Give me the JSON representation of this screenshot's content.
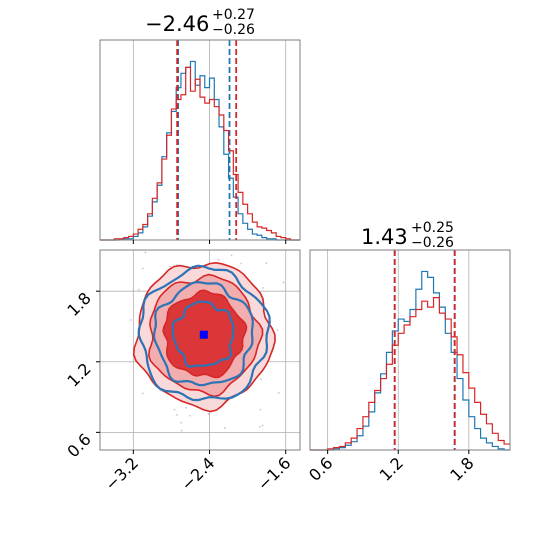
{
  "chart_data": [
    {
      "type": "histogram",
      "panel": "marginal-x",
      "title": {
        "value": "−2.46",
        "upper": "+0.27",
        "lower": "−0.26"
      },
      "xlim": [
        -3.55,
        -1.45
      ],
      "bins_x": [
        -3.55,
        -3.5,
        -3.45,
        -3.4,
        -3.35,
        -3.3,
        -3.25,
        -3.2,
        -3.15,
        -3.1,
        -3.05,
        -3.0,
        -2.95,
        -2.9,
        -2.85,
        -2.8,
        -2.75,
        -2.7,
        -2.65,
        -2.6,
        -2.55,
        -2.5,
        -2.45,
        -2.4,
        -2.35,
        -2.3,
        -2.25,
        -2.2,
        -2.15,
        -2.1,
        -2.05,
        -2.0,
        -1.95,
        -1.9,
        -1.85,
        -1.8,
        -1.75,
        -1.7,
        -1.65,
        -1.6,
        -1.55,
        -1.5,
        -1.45
      ],
      "series": [
        {
          "name": "",
          "color": "#1f77b4",
          "values": [
            0,
            0,
            0,
            0,
            1,
            1,
            1,
            3,
            6,
            11,
            20,
            32,
            46,
            70,
            90,
            108,
            128,
            140,
            145,
            150,
            130,
            138,
            128,
            136,
            118,
            95,
            72,
            52,
            36,
            22,
            14,
            9,
            5,
            4,
            2,
            1,
            1,
            0,
            0,
            0,
            0,
            0
          ],
          "quantiles": [
            -2.73,
            -2.46,
            -2.19
          ]
        },
        {
          "name": "",
          "color": "#d62728",
          "values": [
            0,
            0,
            0,
            1,
            1,
            2,
            3,
            5,
            9,
            13,
            22,
            35,
            48,
            68,
            88,
            110,
            118,
            122,
            145,
            125,
            135,
            120,
            115,
            118,
            112,
            105,
            92,
            75,
            55,
            40,
            30,
            22,
            15,
            11,
            10,
            8,
            6,
            3,
            2,
            1,
            0,
            0
          ],
          "quantiles": [
            -2.74,
            -2.46,
            -2.12
          ]
        }
      ]
    },
    {
      "type": "histogram",
      "panel": "marginal-y",
      "title": {
        "value": "1.43",
        "upper": "+0.25",
        "lower": "−0.26"
      },
      "xlim": [
        0.45,
        2.15
      ],
      "xticks": [
        "0.6",
        "1.2",
        "1.8"
      ],
      "bins_x": [
        0.45,
        0.5,
        0.55,
        0.6,
        0.65,
        0.7,
        0.75,
        0.8,
        0.85,
        0.9,
        0.95,
        1.0,
        1.05,
        1.1,
        1.15,
        1.2,
        1.25,
        1.3,
        1.35,
        1.4,
        1.45,
        1.5,
        1.55,
        1.6,
        1.65,
        1.7,
        1.75,
        1.8,
        1.85,
        1.9,
        1.95,
        2.0,
        2.05,
        2.1,
        2.15
      ],
      "series": [
        {
          "name": "",
          "color": "#1f77b4",
          "values": [
            0,
            0,
            0,
            0,
            1,
            2,
            4,
            7,
            12,
            20,
            32,
            48,
            64,
            82,
            100,
            110,
            108,
            118,
            135,
            150,
            145,
            132,
            120,
            98,
            82,
            60,
            42,
            28,
            18,
            10,
            6,
            3,
            1,
            0
          ],
          "quantiles": [
            1.17,
            1.43,
            1.68
          ]
        },
        {
          "name": "",
          "color": "#d62728",
          "values": [
            0,
            0,
            0,
            1,
            2,
            3,
            6,
            10,
            18,
            28,
            40,
            50,
            60,
            72,
            88,
            98,
            105,
            112,
            118,
            125,
            120,
            128,
            115,
            110,
            95,
            80,
            65,
            52,
            40,
            30,
            22,
            14,
            8,
            5
          ],
          "quantiles": [
            1.17,
            1.43,
            1.68
          ]
        }
      ]
    },
    {
      "type": "contour",
      "panel": "joint",
      "xlim": [
        -3.55,
        -1.45
      ],
      "ylim": [
        0.45,
        2.15
      ],
      "xticks": [
        "−3.2",
        "−2.4",
        "−1.6"
      ],
      "yticks": [
        "0.6",
        "1.2",
        "1.8"
      ],
      "center": {
        "x": -2.46,
        "y": 1.43,
        "marker": "blue-square"
      },
      "levels": [
        {
          "level": 1,
          "fill": "#ea6a6b"
        },
        {
          "level": 2,
          "fill": "#f2aeaf"
        },
        {
          "level": 3,
          "fill": "#f9d9d9"
        }
      ],
      "series": [
        {
          "name": "",
          "color": "#d62728"
        },
        {
          "name": "",
          "color": "#2c74b5"
        }
      ]
    }
  ]
}
